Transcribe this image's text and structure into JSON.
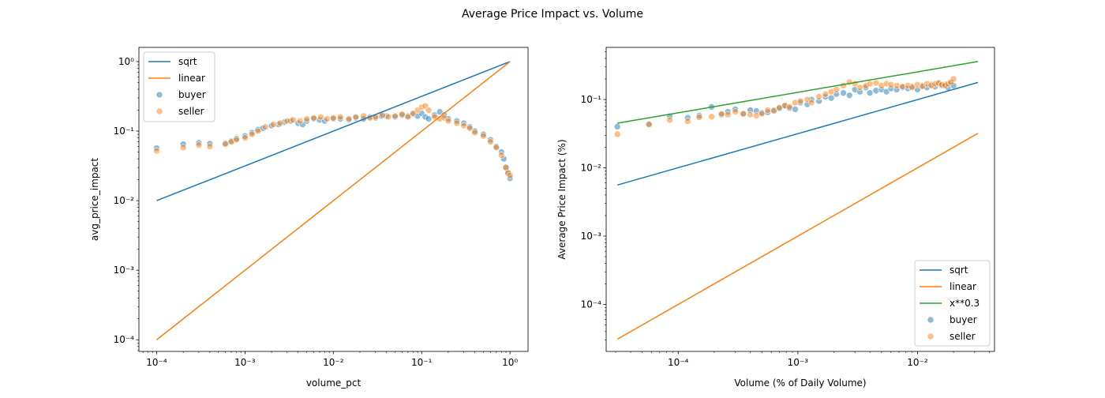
{
  "figure": {
    "suptitle": "Average Price Impact vs. Volume"
  },
  "colors": {
    "blue": "#1f77b4",
    "orange": "#ff7f0e",
    "green": "#2ca02c"
  },
  "chart_data": [
    {
      "type": "scatter",
      "title": "",
      "xlabel": "volume_pct",
      "ylabel": "avg_price_impact",
      "xscale": "log",
      "yscale": "log",
      "xlim": [
        6.3e-05,
        1.6
      ],
      "ylim": [
        6.8e-05,
        1.6
      ],
      "xticks": [
        {
          "value": 0.0001,
          "label": "10⁻⁴"
        },
        {
          "value": 0.001,
          "label": "10⁻³"
        },
        {
          "value": 0.01,
          "label": "10⁻²"
        },
        {
          "value": 0.1,
          "label": "10⁻¹"
        },
        {
          "value": 1,
          "label": "10⁰"
        }
      ],
      "yticks": [
        {
          "value": 0.0001,
          "label": "10⁻⁴"
        },
        {
          "value": 0.001,
          "label": "10⁻³"
        },
        {
          "value": 0.01,
          "label": "10⁻²"
        },
        {
          "value": 0.1,
          "label": "10⁻¹"
        },
        {
          "value": 1,
          "label": "10⁰"
        }
      ],
      "grid": false,
      "legend_position": "upper-left",
      "lines": [
        {
          "name": "sqrt",
          "color": "#1f77b4",
          "x": [
            0.0001,
            1
          ],
          "y": [
            0.01,
            1
          ]
        },
        {
          "name": "linear",
          "color": "#ff7f0e",
          "x": [
            0.0001,
            1
          ],
          "y": [
            0.0001,
            1
          ]
        }
      ],
      "series": [
        {
          "name": "buyer",
          "color": "#1f77b4",
          "points": [
            [
              0.0001,
              0.057
            ],
            [
              0.0002,
              0.065
            ],
            [
              0.0003,
              0.068
            ],
            [
              0.0004,
              0.066
            ],
            [
              0.0006,
              0.067
            ],
            [
              0.0007,
              0.072
            ],
            [
              0.0008,
              0.078
            ],
            [
              0.001,
              0.085
            ],
            [
              0.0012,
              0.095
            ],
            [
              0.0014,
              0.105
            ],
            [
              0.0016,
              0.11
            ],
            [
              0.002,
              0.12
            ],
            [
              0.0024,
              0.125
            ],
            [
              0.0028,
              0.135
            ],
            [
              0.0033,
              0.14
            ],
            [
              0.004,
              0.13
            ],
            [
              0.0045,
              0.125
            ],
            [
              0.005,
              0.14
            ],
            [
              0.006,
              0.15
            ],
            [
              0.007,
              0.145
            ],
            [
              0.008,
              0.14
            ],
            [
              0.01,
              0.15
            ],
            [
              0.012,
              0.15
            ],
            [
              0.015,
              0.145
            ],
            [
              0.018,
              0.155
            ],
            [
              0.022,
              0.15
            ],
            [
              0.026,
              0.16
            ],
            [
              0.03,
              0.155
            ],
            [
              0.035,
              0.165
            ],
            [
              0.04,
              0.165
            ],
            [
              0.05,
              0.16
            ],
            [
              0.06,
              0.17
            ],
            [
              0.07,
              0.165
            ],
            [
              0.08,
              0.175
            ],
            [
              0.09,
              0.165
            ],
            [
              0.1,
              0.18
            ],
            [
              0.11,
              0.16
            ],
            [
              0.12,
              0.15
            ],
            [
              0.14,
              0.17
            ],
            [
              0.16,
              0.19
            ],
            [
              0.18,
              0.17
            ],
            [
              0.2,
              0.15
            ],
            [
              0.25,
              0.14
            ],
            [
              0.3,
              0.13
            ],
            [
              0.35,
              0.115
            ],
            [
              0.4,
              0.1
            ],
            [
              0.5,
              0.09
            ],
            [
              0.6,
              0.075
            ],
            [
              0.7,
              0.06
            ],
            [
              0.8,
              0.05
            ],
            [
              0.85,
              0.04
            ],
            [
              0.9,
              0.03
            ],
            [
              0.95,
              0.025
            ],
            [
              1.0,
              0.021
            ]
          ]
        },
        {
          "name": "seller",
          "color": "#ff7f0e",
          "points": [
            [
              0.0001,
              0.052
            ],
            [
              0.0002,
              0.058
            ],
            [
              0.0003,
              0.063
            ],
            [
              0.0004,
              0.06
            ],
            [
              0.0006,
              0.065
            ],
            [
              0.0007,
              0.07
            ],
            [
              0.0008,
              0.075
            ],
            [
              0.001,
              0.08
            ],
            [
              0.0012,
              0.09
            ],
            [
              0.0014,
              0.1
            ],
            [
              0.0017,
              0.115
            ],
            [
              0.0021,
              0.125
            ],
            [
              0.0025,
              0.13
            ],
            [
              0.003,
              0.14
            ],
            [
              0.0035,
              0.145
            ],
            [
              0.0042,
              0.14
            ],
            [
              0.005,
              0.15
            ],
            [
              0.006,
              0.155
            ],
            [
              0.0072,
              0.16
            ],
            [
              0.0085,
              0.15
            ],
            [
              0.01,
              0.155
            ],
            [
              0.012,
              0.16
            ],
            [
              0.015,
              0.15
            ],
            [
              0.018,
              0.16
            ],
            [
              0.022,
              0.165
            ],
            [
              0.026,
              0.155
            ],
            [
              0.03,
              0.16
            ],
            [
              0.036,
              0.17
            ],
            [
              0.042,
              0.16
            ],
            [
              0.05,
              0.165
            ],
            [
              0.06,
              0.175
            ],
            [
              0.07,
              0.16
            ],
            [
              0.08,
              0.18
            ],
            [
              0.09,
              0.2
            ],
            [
              0.1,
              0.22
            ],
            [
              0.11,
              0.23
            ],
            [
              0.12,
              0.2
            ],
            [
              0.14,
              0.16
            ],
            [
              0.16,
              0.15
            ],
            [
              0.18,
              0.155
            ],
            [
              0.2,
              0.14
            ],
            [
              0.25,
              0.13
            ],
            [
              0.3,
              0.12
            ],
            [
              0.35,
              0.11
            ],
            [
              0.4,
              0.095
            ],
            [
              0.5,
              0.085
            ],
            [
              0.6,
              0.07
            ],
            [
              0.7,
              0.058
            ],
            [
              0.8,
              0.045
            ],
            [
              0.9,
              0.03
            ],
            [
              0.95,
              0.025
            ],
            [
              1.0,
              0.023
            ]
          ]
        }
      ]
    },
    {
      "type": "scatter",
      "title": "",
      "xlabel": "Volume (% of Daily Volume)",
      "ylabel": "Average Price Impact (%)",
      "xscale": "log",
      "yscale": "log",
      "xlim": [
        2.5e-05,
        0.044
      ],
      "ylim": [
        2.05e-05,
        0.58
      ],
      "xticks": [
        {
          "value": 0.0001,
          "label": "10⁻⁴"
        },
        {
          "value": 0.001,
          "label": "10⁻³"
        },
        {
          "value": 0.01,
          "label": "10⁻²"
        }
      ],
      "yticks": [
        {
          "value": 0.0001,
          "label": "10⁻⁴"
        },
        {
          "value": 0.001,
          "label": "10⁻³"
        },
        {
          "value": 0.01,
          "label": "10⁻²"
        },
        {
          "value": 0.1,
          "label": "10⁻¹"
        }
      ],
      "grid": false,
      "legend_position": "lower-right",
      "lines": [
        {
          "name": "sqrt",
          "color": "#1f77b4",
          "x": [
            3.1e-05,
            0.032
          ],
          "y": [
            0.0056,
            0.178
          ]
        },
        {
          "name": "linear",
          "color": "#ff7f0e",
          "x": [
            3.1e-05,
            0.032
          ],
          "y": [
            3.1e-05,
            0.032
          ]
        },
        {
          "name": "x**0.3",
          "color": "#2ca02c",
          "x": [
            3.1e-05,
            0.032
          ],
          "y": [
            0.045,
            0.36
          ]
        }
      ],
      "series": [
        {
          "name": "buyer",
          "color": "#1f77b4",
          "points": [
            [
              3.1e-05,
              0.04
            ],
            [
              5.7e-05,
              0.044
            ],
            [
              8.5e-05,
              0.057
            ],
            [
              0.00012,
              0.054
            ],
            [
              0.00015,
              0.058
            ],
            [
              0.00019,
              0.078
            ],
            [
              0.00023,
              0.06
            ],
            [
              0.00026,
              0.066
            ],
            [
              0.0003,
              0.072
            ],
            [
              0.00035,
              0.061
            ],
            [
              0.0004,
              0.07
            ],
            [
              0.00045,
              0.068
            ],
            [
              0.0005,
              0.064
            ],
            [
              0.00056,
              0.065
            ],
            [
              0.00063,
              0.07
            ],
            [
              0.0007,
              0.074
            ],
            [
              0.00078,
              0.08
            ],
            [
              0.00085,
              0.075
            ],
            [
              0.00095,
              0.072
            ],
            [
              0.00105,
              0.09
            ],
            [
              0.0012,
              0.085
            ],
            [
              0.0013,
              0.1
            ],
            [
              0.0015,
              0.095
            ],
            [
              0.0017,
              0.11
            ],
            [
              0.0019,
              0.105
            ],
            [
              0.0021,
              0.12
            ],
            [
              0.0024,
              0.125
            ],
            [
              0.0027,
              0.115
            ],
            [
              0.003,
              0.14
            ],
            [
              0.0033,
              0.13
            ],
            [
              0.0037,
              0.15
            ],
            [
              0.004,
              0.125
            ],
            [
              0.0045,
              0.135
            ],
            [
              0.005,
              0.14
            ],
            [
              0.0055,
              0.13
            ],
            [
              0.006,
              0.145
            ],
            [
              0.0067,
              0.14
            ],
            [
              0.0075,
              0.15
            ],
            [
              0.0083,
              0.145
            ],
            [
              0.009,
              0.155
            ],
            [
              0.01,
              0.14
            ],
            [
              0.011,
              0.16
            ],
            [
              0.012,
              0.15
            ],
            [
              0.013,
              0.165
            ],
            [
              0.014,
              0.155
            ],
            [
              0.015,
              0.17
            ],
            [
              0.016,
              0.16
            ],
            [
              0.017,
              0.165
            ],
            [
              0.018,
              0.15
            ],
            [
              0.019,
              0.175
            ],
            [
              0.02,
              0.16
            ]
          ]
        },
        {
          "name": "seller",
          "color": "#ff7f0e",
          "points": [
            [
              3.1e-05,
              0.031
            ],
            [
              5.7e-05,
              0.043
            ],
            [
              8.5e-05,
              0.05
            ],
            [
              0.00012,
              0.048
            ],
            [
              0.00015,
              0.055
            ],
            [
              0.00019,
              0.056
            ],
            [
              0.00023,
              0.062
            ],
            [
              0.00026,
              0.06
            ],
            [
              0.0003,
              0.066
            ],
            [
              0.00035,
              0.062
            ],
            [
              0.0004,
              0.06
            ],
            [
              0.00045,
              0.058
            ],
            [
              0.0005,
              0.062
            ],
            [
              0.00056,
              0.07
            ],
            [
              0.00063,
              0.068
            ],
            [
              0.0007,
              0.076
            ],
            [
              0.00078,
              0.082
            ],
            [
              0.00085,
              0.078
            ],
            [
              0.00095,
              0.09
            ],
            [
              0.00105,
              0.095
            ],
            [
              0.0012,
              0.1
            ],
            [
              0.0013,
              0.09
            ],
            [
              0.0015,
              0.11
            ],
            [
              0.0017,
              0.12
            ],
            [
              0.0019,
              0.13
            ],
            [
              0.0021,
              0.14
            ],
            [
              0.0024,
              0.16
            ],
            [
              0.0027,
              0.18
            ],
            [
              0.003,
              0.17
            ],
            [
              0.0033,
              0.15
            ],
            [
              0.0037,
              0.16
            ],
            [
              0.004,
              0.17
            ],
            [
              0.0045,
              0.175
            ],
            [
              0.005,
              0.16
            ],
            [
              0.0055,
              0.17
            ],
            [
              0.006,
              0.165
            ],
            [
              0.0067,
              0.16
            ],
            [
              0.0075,
              0.155
            ],
            [
              0.0083,
              0.16
            ],
            [
              0.009,
              0.15
            ],
            [
              0.01,
              0.165
            ],
            [
              0.011,
              0.155
            ],
            [
              0.012,
              0.17
            ],
            [
              0.013,
              0.16
            ],
            [
              0.014,
              0.17
            ],
            [
              0.015,
              0.175
            ],
            [
              0.016,
              0.165
            ],
            [
              0.017,
              0.16
            ],
            [
              0.018,
              0.17
            ],
            [
              0.019,
              0.18
            ],
            [
              0.02,
              0.2
            ]
          ]
        }
      ]
    }
  ]
}
